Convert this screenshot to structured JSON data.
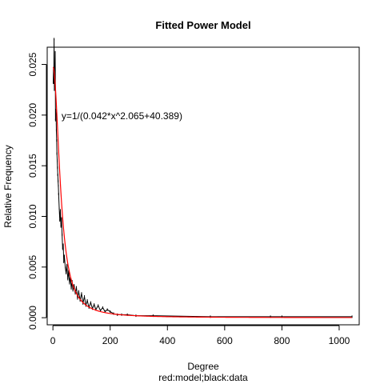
{
  "chart_data": {
    "type": "line",
    "title": "Fitted Power Model",
    "xlabel": "Degree",
    "xsublabel": "red:model;black:data",
    "ylabel": "Relative Frequency",
    "xlim": [
      -20,
      1070
    ],
    "ylim": [
      -0.0007,
      0.0267
    ],
    "xticks": [
      0,
      200,
      400,
      600,
      800,
      1000
    ],
    "xtick_labels": [
      "0",
      "200",
      "400",
      "600",
      "800",
      "1000"
    ],
    "yticks": [
      0.0,
      0.005,
      0.01,
      0.015,
      0.02,
      0.025
    ],
    "ytick_labels": [
      "0.000",
      "0.005",
      "0.010",
      "0.015",
      "0.020",
      "0.025"
    ],
    "annotation": {
      "text": "y=1/(0.042*x^2.065+40.389)",
      "x": 30,
      "y": 0.0199
    },
    "colors": {
      "model": "#ff0000",
      "data": "#000000"
    },
    "model": {
      "a": 0.042,
      "b": 2.065,
      "c": 40.389
    },
    "series": [
      {
        "role": "data",
        "x": [
          1,
          2,
          3,
          4,
          5,
          6,
          7,
          8,
          9,
          10,
          11,
          12,
          13,
          14,
          15,
          16,
          17,
          18,
          19,
          20,
          22,
          24,
          26,
          28,
          30,
          32,
          34,
          36,
          38,
          40,
          43,
          46,
          49,
          52,
          55,
          58,
          61,
          64,
          67,
          70,
          74,
          78,
          82,
          86,
          90,
          95,
          100,
          105,
          110,
          115,
          120,
          126,
          132,
          138,
          144,
          150,
          158,
          166,
          174,
          182,
          190,
          200,
          212,
          225,
          240,
          260,
          290,
          350,
          550,
          760,
          800,
          1045
        ],
        "y": [
          0.0232,
          0.0245,
          0.0232,
          0.0275,
          0.0225,
          0.0241,
          0.0237,
          0.0262,
          0.0195,
          0.0205,
          0.0201,
          0.0185,
          0.0175,
          0.0162,
          0.0155,
          0.0148,
          0.0141,
          0.0135,
          0.013,
          0.0122,
          0.0108,
          0.0096,
          0.0106,
          0.009,
          0.0098,
          0.0082,
          0.0068,
          0.0072,
          0.0055,
          0.0061,
          0.005,
          0.0044,
          0.0052,
          0.0038,
          0.0046,
          0.0034,
          0.004,
          0.0029,
          0.0036,
          0.0027,
          0.0032,
          0.0024,
          0.003,
          0.0019,
          0.0026,
          0.0017,
          0.0024,
          0.0014,
          0.0021,
          0.0012,
          0.0017,
          0.001,
          0.0015,
          0.0009,
          0.0013,
          0.0008,
          0.0012,
          0.0007,
          0.001,
          0.0006,
          0.0008,
          0.0006,
          0.0004,
          0.0003,
          0.0003,
          0.0003,
          0.0002,
          0.0002,
          0.0001,
          0.0001,
          0.0001,
          0.0001
        ]
      }
    ]
  }
}
